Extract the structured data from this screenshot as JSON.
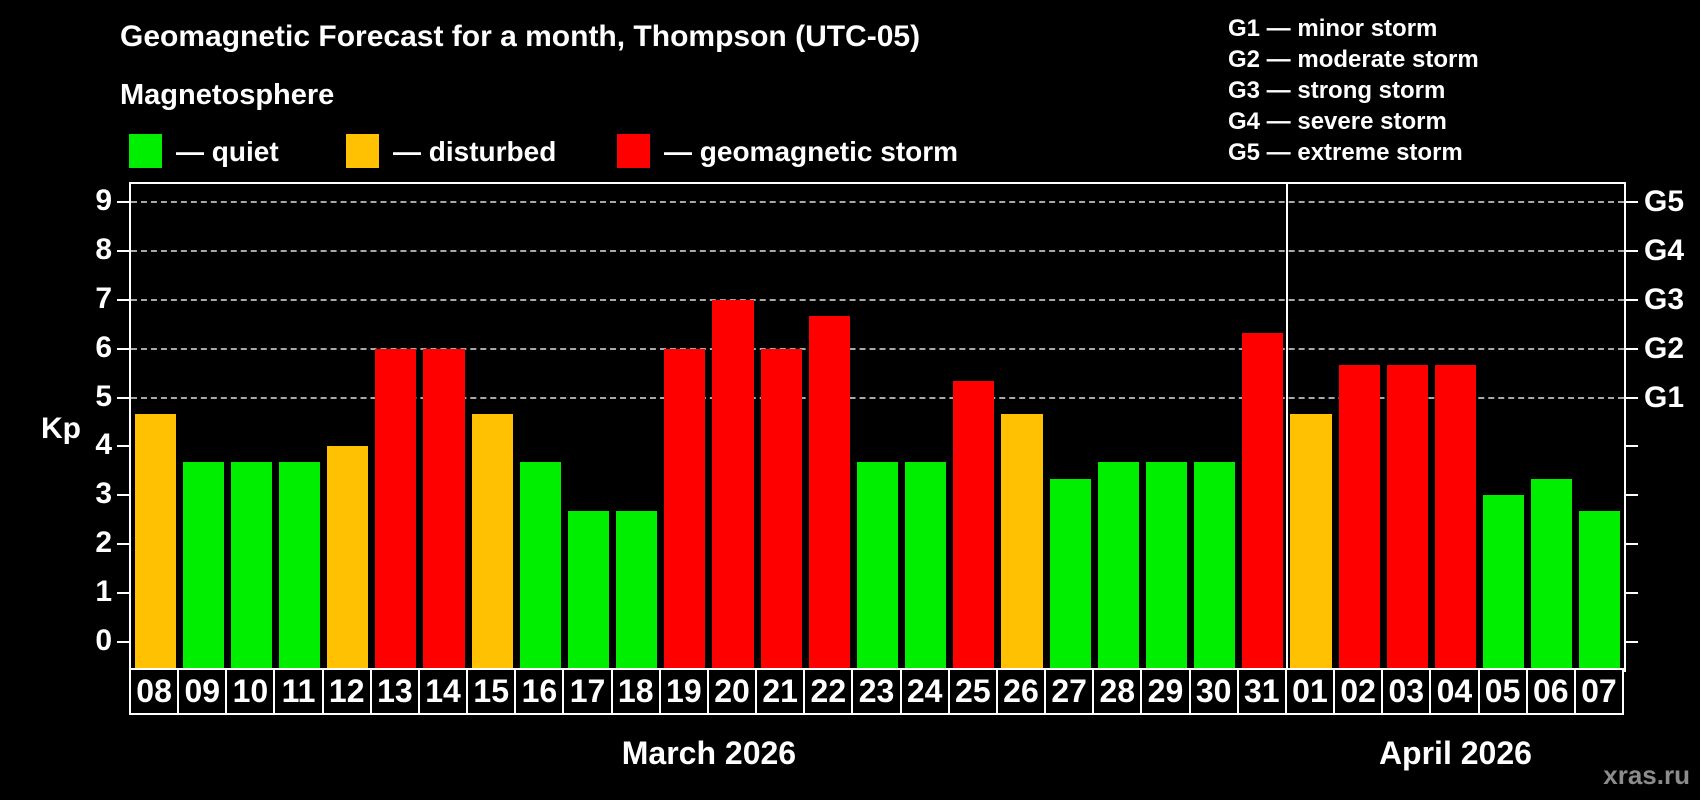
{
  "header": {
    "title": "Geomagnetic Forecast for a month, Thompson (UTC-05)",
    "subtitle": "Magnetosphere",
    "legend": [
      {
        "key": "quiet",
        "label": "— quiet"
      },
      {
        "key": "disturbed",
        "label": "— disturbed"
      },
      {
        "key": "storm",
        "label": "— geomagnetic storm"
      }
    ],
    "g_scale": [
      "G1 — minor storm",
      "G2 — moderate storm",
      "G3 — strong storm",
      "G4 — severe storm",
      "G5 — extreme storm"
    ]
  },
  "watermark": "xras.ru",
  "colors": {
    "quiet": "#00ee00",
    "disturbed": "#ffc101",
    "storm": "#ff0000",
    "grid": "#a8a8a8",
    "frame": "#ffffff",
    "watermark": "#8c8c8c"
  },
  "chart_data": {
    "type": "bar",
    "title": "Geomagnetic Forecast for a month, Thompson (UTC-05)",
    "ylabel": "Kp",
    "ylim": [
      0,
      9
    ],
    "yticks": [
      0,
      1,
      2,
      3,
      4,
      5,
      6,
      7,
      8,
      9
    ],
    "grid_levels": [
      5,
      6,
      7,
      8,
      9
    ],
    "right_axis_labels": [
      {
        "kp": 5,
        "label": "G1"
      },
      {
        "kp": 6,
        "label": "G2"
      },
      {
        "kp": 7,
        "label": "G3"
      },
      {
        "kp": 8,
        "label": "G4"
      },
      {
        "kp": 9,
        "label": "G5"
      }
    ],
    "legend_position": "top-left",
    "months": [
      {
        "label": "March 2026",
        "bars": [
          {
            "day": "08",
            "kp": 4.67,
            "level": "disturbed"
          },
          {
            "day": "09",
            "kp": 3.67,
            "level": "quiet"
          },
          {
            "day": "10",
            "kp": 3.67,
            "level": "quiet"
          },
          {
            "day": "11",
            "kp": 3.67,
            "level": "quiet"
          },
          {
            "day": "12",
            "kp": 4.0,
            "level": "disturbed"
          },
          {
            "day": "13",
            "kp": 6.0,
            "level": "storm"
          },
          {
            "day": "14",
            "kp": 6.0,
            "level": "storm"
          },
          {
            "day": "15",
            "kp": 4.67,
            "level": "disturbed"
          },
          {
            "day": "16",
            "kp": 3.67,
            "level": "quiet"
          },
          {
            "day": "17",
            "kp": 2.67,
            "level": "quiet"
          },
          {
            "day": "18",
            "kp": 2.67,
            "level": "quiet"
          },
          {
            "day": "19",
            "kp": 6.0,
            "level": "storm"
          },
          {
            "day": "20",
            "kp": 7.0,
            "level": "storm"
          },
          {
            "day": "21",
            "kp": 6.0,
            "level": "storm"
          },
          {
            "day": "22",
            "kp": 6.67,
            "level": "storm"
          },
          {
            "day": "23",
            "kp": 3.67,
            "level": "quiet"
          },
          {
            "day": "24",
            "kp": 3.67,
            "level": "quiet"
          },
          {
            "day": "25",
            "kp": 5.33,
            "level": "storm"
          },
          {
            "day": "26",
            "kp": 4.67,
            "level": "disturbed"
          },
          {
            "day": "27",
            "kp": 3.33,
            "level": "quiet"
          },
          {
            "day": "28",
            "kp": 3.67,
            "level": "quiet"
          },
          {
            "day": "29",
            "kp": 3.67,
            "level": "quiet"
          },
          {
            "day": "30",
            "kp": 3.67,
            "level": "quiet"
          },
          {
            "day": "31",
            "kp": 6.33,
            "level": "storm"
          }
        ]
      },
      {
        "label": "April 2026",
        "bars": [
          {
            "day": "01",
            "kp": 4.67,
            "level": "disturbed"
          },
          {
            "day": "02",
            "kp": 5.67,
            "level": "storm"
          },
          {
            "day": "03",
            "kp": 5.67,
            "level": "storm"
          },
          {
            "day": "04",
            "kp": 5.67,
            "level": "storm"
          },
          {
            "day": "05",
            "kp": 3.0,
            "level": "quiet"
          },
          {
            "day": "06",
            "kp": 3.33,
            "level": "quiet"
          },
          {
            "day": "07",
            "kp": 2.67,
            "level": "quiet"
          }
        ]
      }
    ]
  }
}
